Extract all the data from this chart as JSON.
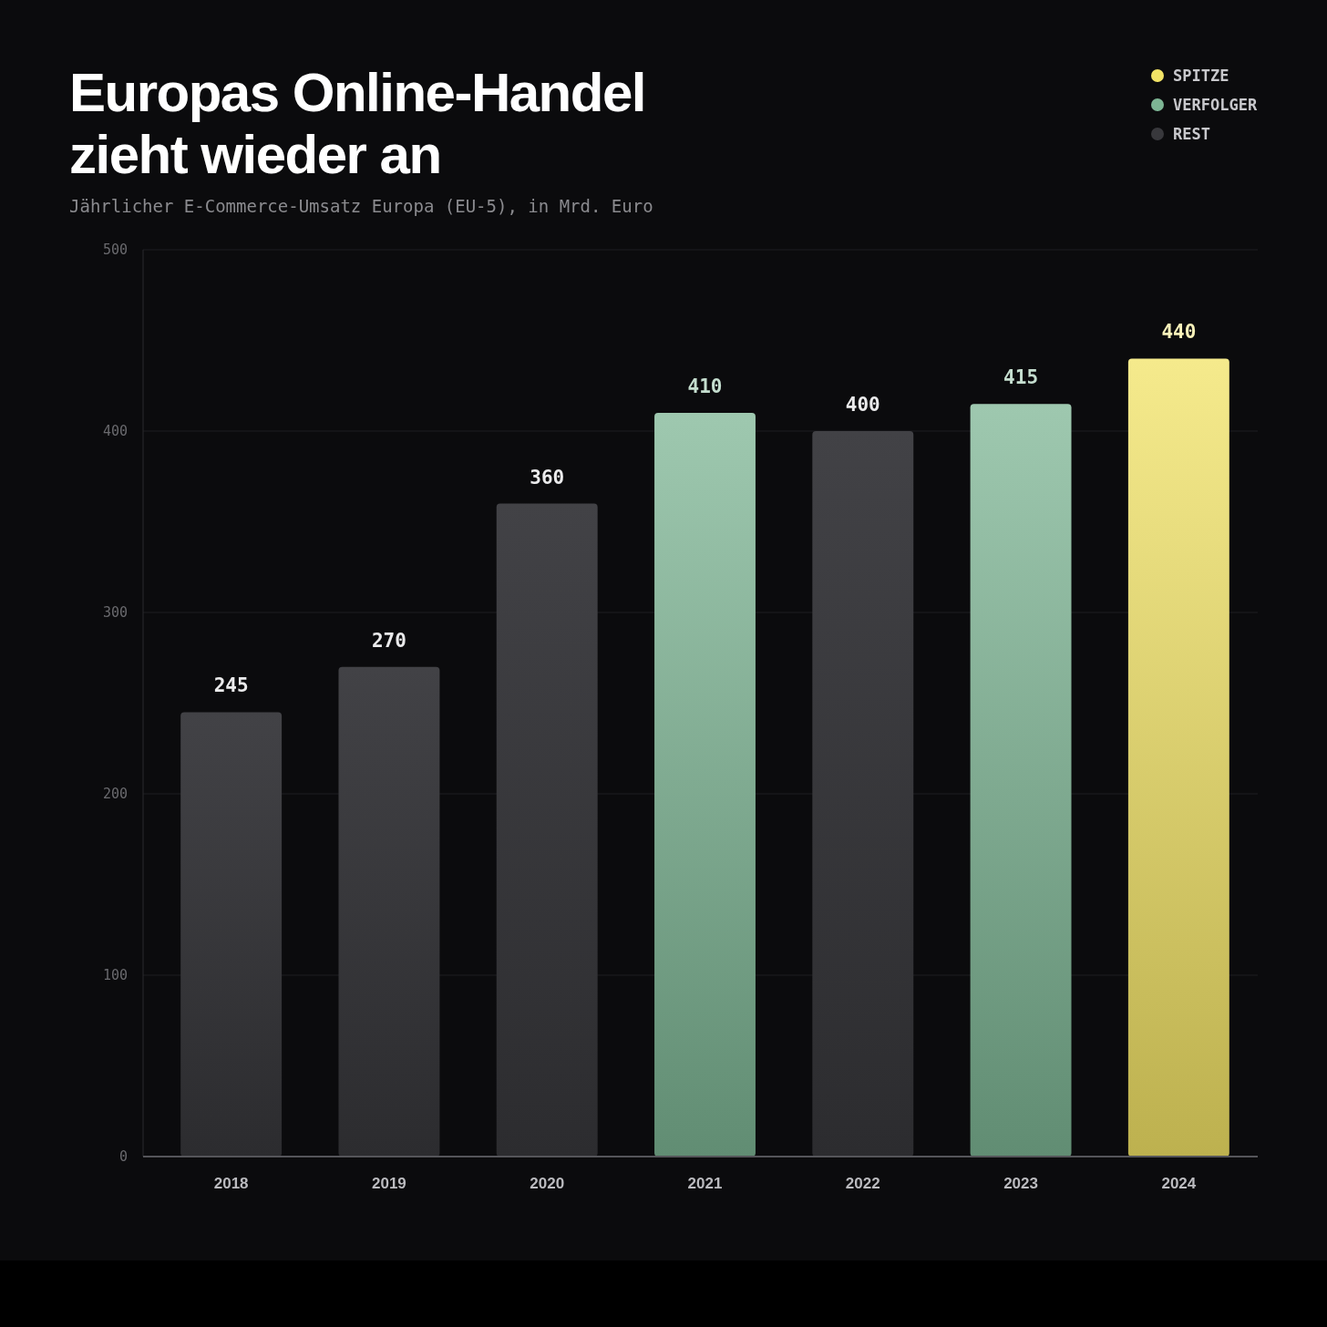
{
  "chart_data": {
    "type": "bar",
    "title": "Europas Online-Handel zieht wieder an",
    "subtitle": "Jährlicher E-Commerce-Umsatz Europa (EU-5), in Mrd. Euro",
    "categories": [
      "2018",
      "2019",
      "2020",
      "2021",
      "2022",
      "2023",
      "2024"
    ],
    "stacked": true,
    "series": [
      {
        "name": "SPITZE",
        "color": "#f2e366",
        "values": [
          null,
          null,
          null,
          null,
          null,
          null,
          440
        ]
      },
      {
        "name": "VERFOLGER",
        "color": "#7db594",
        "values": [
          null,
          null,
          null,
          410,
          null,
          415,
          null
        ]
      },
      {
        "name": "REST",
        "color": "#38383c",
        "values": [
          245,
          270,
          360,
          null,
          400,
          null,
          null
        ]
      }
    ],
    "ylim": [
      0,
      500
    ],
    "yticks": [
      0,
      100,
      200,
      300,
      400,
      500
    ],
    "grid": "y",
    "legend": "top right",
    "data_labels": true
  }
}
